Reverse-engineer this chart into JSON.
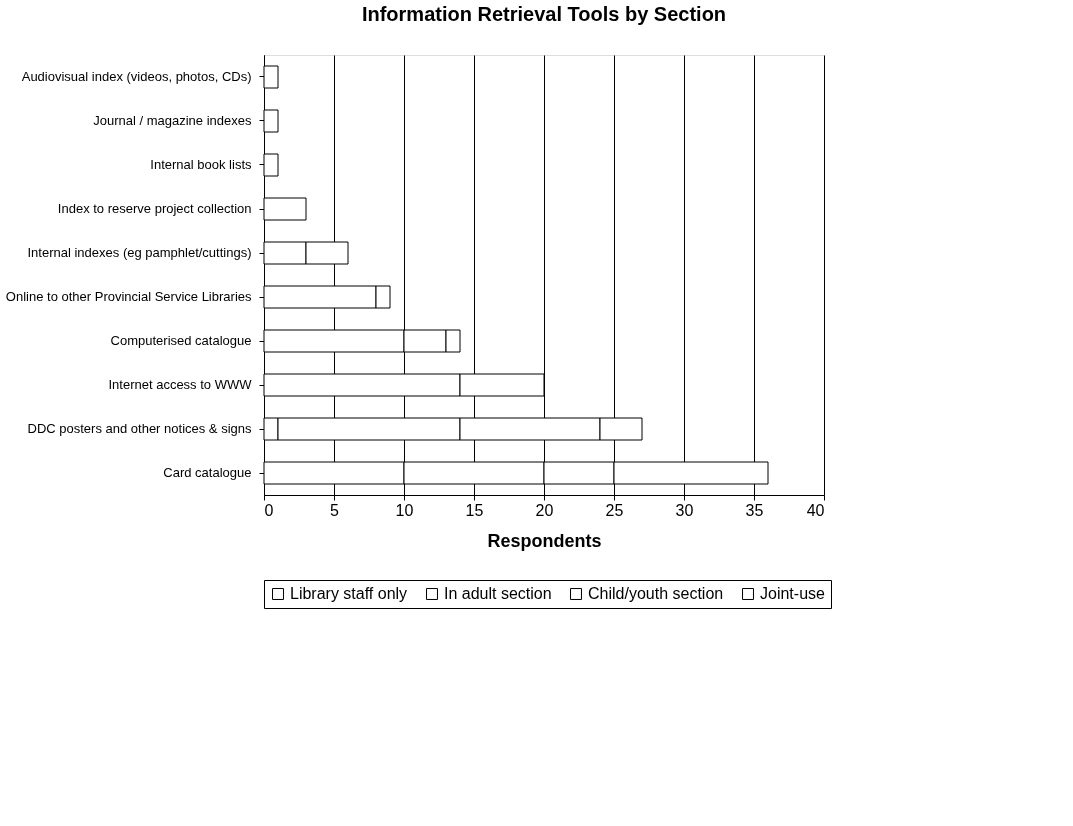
{
  "chart_data": {
    "type": "bar",
    "orientation": "horizontal",
    "stacked": true,
    "title": "Information Retrieval Tools by Section",
    "xlabel": "Respondents",
    "categories": [
      "Audiovisual index  (videos, photos, CDs)",
      "Journal / magazine indexes",
      "Internal book lists",
      "Index to reserve project collection",
      "Internal indexes (eg pamphlet/cuttings)",
      "Online to other Provincial Service Libraries",
      "Computerised  catalogue",
      "Internet access to WWW",
      "DDC posters and other notices & signs",
      "Card catalogue"
    ],
    "series": [
      {
        "name": "Library staff only",
        "color": "#ffffff",
        "values": [
          0,
          1,
          1,
          3,
          3,
          8,
          10,
          14,
          1,
          10
        ]
      },
      {
        "name": "In adult section",
        "color": "#ffffff",
        "values": [
          0,
          0,
          0,
          0,
          3,
          1,
          3,
          6,
          13,
          10
        ]
      },
      {
        "name": "Child/youth section",
        "color": "#ffffff",
        "values": [
          0,
          0,
          0,
          0,
          0,
          0,
          1,
          0,
          10,
          5
        ]
      },
      {
        "name": "Joint-use",
        "color": "#ffffff",
        "values": [
          1,
          0,
          0,
          0,
          0,
          0,
          0,
          0,
          3,
          11
        ]
      }
    ],
    "xlim": [
      0,
      40
    ],
    "xticks": [
      0,
      5,
      10,
      15,
      20,
      25,
      30,
      35,
      40
    ],
    "grid": "x",
    "legend": "bottom"
  }
}
